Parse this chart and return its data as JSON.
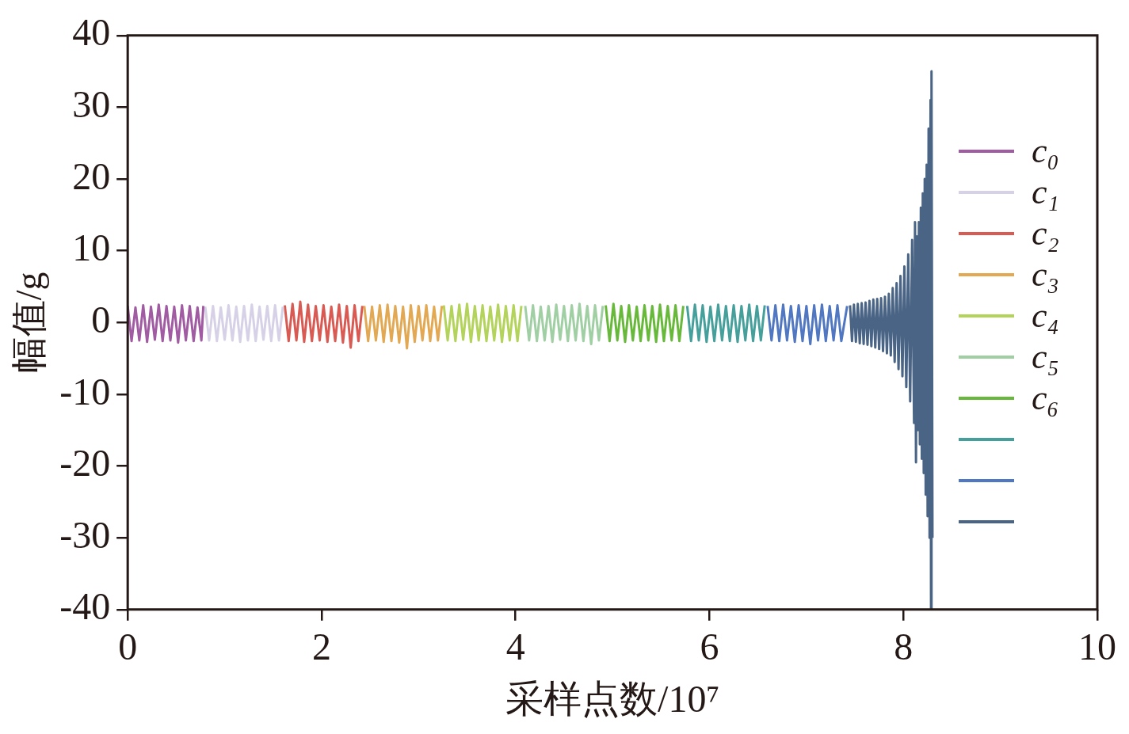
{
  "chart_data": {
    "type": "line",
    "xlabel": "采样点数/10⁷",
    "ylabel": "幅值/g",
    "xlim": [
      0,
      10
    ],
    "xticks": [
      0,
      2,
      4,
      6,
      8,
      10
    ],
    "ylim": [
      -40,
      40
    ],
    "yticks": [
      -40,
      -30,
      -20,
      -10,
      0,
      10,
      20,
      30,
      40
    ],
    "grid": false,
    "legend": "right",
    "marker": "none",
    "line_style": "solid",
    "series": [
      {
        "name": "c₀",
        "color": "#a05ba3",
        "x": [
          0,
          0.04,
          0.08,
          0.12,
          0.16,
          0.2,
          0.24,
          0.28,
          0.32,
          0.36,
          0.4,
          0.44,
          0.48,
          0.52,
          0.56,
          0.6,
          0.64,
          0.68,
          0.72,
          0.76,
          0.78
        ],
        "values": [
          2.3,
          -2.6,
          2.1,
          -2.5,
          2.4,
          -2.7,
          2.2,
          -2.4,
          2.5,
          -2.6,
          2.3,
          -2.5,
          2.2,
          -2.8,
          2.4,
          -2.5,
          2.3,
          -2.6,
          2.1,
          -2.5,
          2.3
        ]
      },
      {
        "name": "c₁",
        "color": "#d6d1e6",
        "x": [
          0.8,
          0.84,
          0.88,
          0.92,
          0.96,
          1.0,
          1.04,
          1.08,
          1.12,
          1.16,
          1.2,
          1.24,
          1.28,
          1.32,
          1.36,
          1.4,
          1.44,
          1.48,
          1.52,
          1.56,
          1.6
        ],
        "values": [
          2.2,
          -2.5,
          2.3,
          -2.6,
          2.1,
          -2.4,
          2.4,
          -2.5,
          2.2,
          -2.7,
          2.3,
          -2.5,
          2.5,
          -2.6,
          2.2,
          -2.4,
          2.3,
          -2.6,
          2.4,
          -2.5,
          2.2
        ]
      },
      {
        "name": "c₂",
        "color": "#d85a52",
        "x": [
          1.62,
          1.66,
          1.7,
          1.74,
          1.78,
          1.82,
          1.86,
          1.9,
          1.94,
          1.98,
          2.02,
          2.06,
          2.1,
          2.14,
          2.18,
          2.22,
          2.26,
          2.3,
          2.34,
          2.38,
          2.42
        ],
        "values": [
          2.4,
          -2.6,
          2.6,
          -2.5,
          2.9,
          -2.7,
          2.5,
          -2.6,
          2.3,
          -2.5,
          2.4,
          -2.7,
          2.2,
          -2.6,
          2.5,
          -2.8,
          2.3,
          -3.5,
          2.4,
          -2.6,
          2.3
        ]
      },
      {
        "name": "c₃",
        "color": "#e3a852",
        "x": [
          2.44,
          2.48,
          2.52,
          2.56,
          2.6,
          2.64,
          2.68,
          2.72,
          2.76,
          2.8,
          2.84,
          2.88,
          2.92,
          2.96,
          3.0,
          3.04,
          3.08,
          3.12,
          3.16,
          3.2,
          3.24
        ],
        "values": [
          2.3,
          -2.6,
          2.2,
          -2.5,
          2.4,
          -2.7,
          2.5,
          -2.6,
          2.3,
          -2.8,
          2.2,
          -3.6,
          2.4,
          -2.7,
          2.3,
          -2.5,
          2.4,
          -2.6,
          2.2,
          -2.5,
          2.3
        ]
      },
      {
        "name": "c₄",
        "color": "#b3d35a",
        "x": [
          3.26,
          3.3,
          3.34,
          3.38,
          3.42,
          3.46,
          3.5,
          3.54,
          3.58,
          3.62,
          3.66,
          3.7,
          3.74,
          3.78,
          3.82,
          3.86,
          3.9,
          3.94,
          3.98,
          4.02,
          4.06
        ],
        "values": [
          2.4,
          -2.5,
          2.3,
          -2.6,
          2.5,
          -2.4,
          2.6,
          -2.7,
          2.3,
          -2.5,
          2.4,
          -2.6,
          2.2,
          -2.5,
          2.5,
          -2.7,
          2.3,
          -2.5,
          2.4,
          -2.6,
          2.3
        ]
      },
      {
        "name": "c₅",
        "color": "#a0cfa3",
        "x": [
          4.1,
          4.14,
          4.18,
          4.22,
          4.26,
          4.3,
          4.34,
          4.38,
          4.42,
          4.46,
          4.5,
          4.54,
          4.58,
          4.62,
          4.66,
          4.7,
          4.74,
          4.78,
          4.82,
          4.86,
          4.9
        ],
        "values": [
          2.3,
          -2.5,
          2.4,
          -2.6,
          2.2,
          -2.5,
          2.3,
          -2.7,
          2.5,
          -2.4,
          2.3,
          -2.6,
          2.4,
          -2.5,
          2.6,
          -2.6,
          2.3,
          -3.0,
          2.4,
          -2.5,
          2.3
        ]
      },
      {
        "name": "c₆",
        "color": "#68b83c",
        "x": [
          4.93,
          4.97,
          5.01,
          5.05,
          5.09,
          5.13,
          5.17,
          5.21,
          5.25,
          5.29,
          5.33,
          5.37,
          5.41,
          5.45,
          5.49,
          5.53,
          5.57,
          5.61,
          5.65,
          5.69,
          5.73
        ],
        "values": [
          2.4,
          -2.6,
          2.6,
          -2.5,
          2.3,
          -2.7,
          2.4,
          -2.5,
          2.2,
          -2.6,
          2.4,
          -2.5,
          2.3,
          -2.7,
          2.5,
          -2.6,
          2.3,
          -2.5,
          2.4,
          -2.6,
          2.3
        ]
      },
      {
        "color": "#45a09c",
        "x": [
          5.77,
          5.81,
          5.85,
          5.89,
          5.93,
          5.97,
          6.01,
          6.05,
          6.09,
          6.13,
          6.17,
          6.21,
          6.25,
          6.29,
          6.33,
          6.37,
          6.41,
          6.45,
          6.49,
          6.53,
          6.57
        ],
        "values": [
          2.3,
          -2.6,
          2.5,
          -2.5,
          2.4,
          -2.7,
          2.2,
          -2.6,
          2.5,
          -2.5,
          2.3,
          -2.6,
          2.4,
          -2.7,
          2.3,
          -2.5,
          2.5,
          -2.6,
          2.3,
          -2.5,
          2.4
        ]
      },
      {
        "color": "#5077c2",
        "x": [
          6.6,
          6.64,
          6.68,
          6.72,
          6.76,
          6.8,
          6.84,
          6.88,
          6.92,
          6.96,
          7.0,
          7.04,
          7.08,
          7.12,
          7.16,
          7.2,
          7.24,
          7.28,
          7.32,
          7.36,
          7.42
        ],
        "values": [
          2.3,
          -2.5,
          2.4,
          -2.6,
          2.5,
          -2.5,
          2.3,
          -2.7,
          2.4,
          -2.6,
          2.3,
          -3.0,
          2.4,
          -2.5,
          2.5,
          -2.6,
          2.3,
          -2.5,
          2.4,
          -2.6,
          2.3
        ]
      },
      {
        "color": "#4a6485",
        "x": [
          7.45,
          7.47,
          7.49,
          7.51,
          7.53,
          7.55,
          7.57,
          7.59,
          7.61,
          7.63,
          7.65,
          7.67,
          7.69,
          7.71,
          7.73,
          7.75,
          7.77,
          7.79,
          7.81,
          7.83,
          7.85,
          7.87,
          7.89,
          7.91,
          7.93,
          7.95,
          7.97,
          7.99,
          8.01,
          8.03,
          8.05,
          8.07,
          8.09,
          8.11,
          8.12,
          8.13,
          8.14,
          8.15,
          8.16,
          8.17,
          8.18,
          8.19,
          8.2,
          8.21,
          8.22,
          8.23,
          8.24,
          8.25,
          8.26,
          8.27,
          8.28,
          8.285,
          8.29,
          8.3
        ],
        "values": [
          2.4,
          -2.6,
          2.5,
          -2.7,
          2.6,
          -2.9,
          2.7,
          -3.0,
          2.8,
          -3.1,
          3.0,
          -3.3,
          3.2,
          -3.5,
          3.3,
          -3.7,
          3.4,
          -4.0,
          3.6,
          -4.3,
          4.0,
          -4.6,
          4.8,
          -5.5,
          5.5,
          -6.5,
          6.5,
          -7.5,
          7.8,
          -9,
          9.5,
          -11,
          11.5,
          -14,
          14,
          -19.5,
          12,
          -15,
          14,
          -17,
          16,
          -19,
          18,
          -21,
          20,
          -24,
          22,
          -27,
          27,
          -30,
          31,
          -40,
          35,
          -30
        ]
      }
    ]
  }
}
